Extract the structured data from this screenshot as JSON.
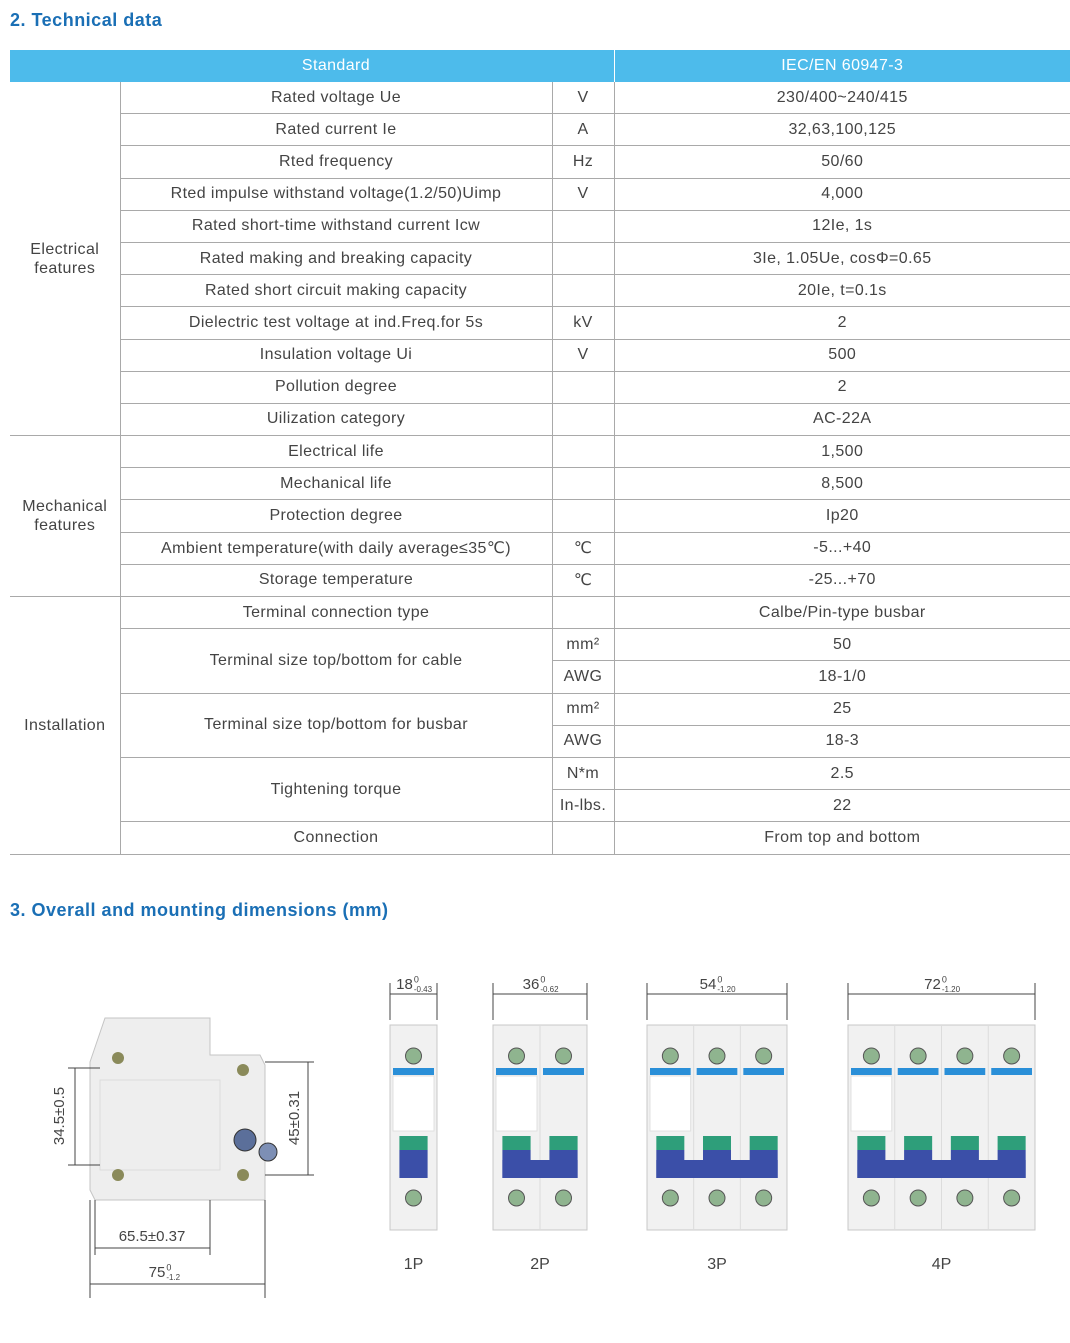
{
  "technical_title": "2. Technical data",
  "dimensions_title": "3. Overall and mounting dimensions (mm)",
  "table": {
    "header": [
      "Standard",
      "IEC/EN 60947-3"
    ],
    "groups": [
      {
        "label": "Electrical features",
        "rows": [
          {
            "param": "Rated voltage Ue",
            "units": [
              "V"
            ],
            "values": [
              "230/400~240/415"
            ]
          },
          {
            "param": "Rated current Ie",
            "units": [
              "A"
            ],
            "values": [
              "32,63,100,125"
            ]
          },
          {
            "param": "Rted frequency",
            "units": [
              "Hz"
            ],
            "values": [
              "50/60"
            ]
          },
          {
            "param": "Rted impulse withstand voltage(1.2/50)Uimp",
            "units": [
              "V"
            ],
            "values": [
              "4,000"
            ]
          },
          {
            "param": "Rated short-time withstand current Icw",
            "values": [
              "12Ie, 1s"
            ]
          },
          {
            "param": "Rated making and breaking capacity",
            "values": [
              "3Ie, 1.05Ue, cosΦ=0.65"
            ]
          },
          {
            "param": "Rated short circuit making capacity",
            "values": [
              "20Ie, t=0.1s"
            ]
          },
          {
            "param": "Dielectric test voltage at ind.Freq.for 5s",
            "units": [
              "kV"
            ],
            "values": [
              "2"
            ]
          },
          {
            "param": "Insulation voltage Ui",
            "units": [
              "V"
            ],
            "values": [
              "500"
            ]
          },
          {
            "param": "Pollution degree",
            "values": [
              "2"
            ]
          },
          {
            "param": "Uilization category",
            "values": [
              "AC-22A"
            ]
          }
        ]
      },
      {
        "label": "Mechanical features",
        "rows": [
          {
            "param": "Electrical life",
            "values": [
              "1,500"
            ]
          },
          {
            "param": "Mechanical life",
            "values": [
              "8,500"
            ]
          },
          {
            "param": "Protection degree",
            "values": [
              "Ip20"
            ]
          },
          {
            "param": "Ambient temperature(with daily average≤35℃)",
            "units": [
              "℃"
            ],
            "values": [
              "-5...+40"
            ]
          },
          {
            "param": "Storage temperature",
            "units": [
              "℃"
            ],
            "values": [
              "-25...+70"
            ]
          }
        ]
      },
      {
        "label": "Installation",
        "rows": [
          {
            "param": "Terminal connection type",
            "values": [
              "Calbe/Pin-type busbar"
            ]
          },
          {
            "param": "Terminal size top/bottom for cable",
            "units": [
              "mm²",
              "AWG"
            ],
            "values": [
              "50",
              "18-1/0"
            ]
          },
          {
            "param": "Terminal size top/bottom for busbar",
            "units": [
              "mm²",
              "AWG"
            ],
            "values": [
              "25",
              "18-3"
            ]
          },
          {
            "param": "Tightening torque",
            "units": [
              "N*m",
              "In-lbs."
            ],
            "values": [
              "2.5",
              "22"
            ]
          },
          {
            "param": "Connection",
            "values": [
              "From top and bottom"
            ]
          }
        ]
      }
    ]
  },
  "dimensions": {
    "side_view": [
      {
        "main": "34.5±0.5"
      },
      {
        "main": "45±0.31"
      },
      {
        "main": "65.5±0.37"
      },
      {
        "main": "75",
        "upper": "0",
        "lower": "-1.2"
      }
    ],
    "poles": [
      {
        "label": "1P",
        "width": {
          "main": "18",
          "upper": "0",
          "lower": "-0.43"
        }
      },
      {
        "label": "2P",
        "width": {
          "main": "36",
          "upper": "0",
          "lower": "-0.62"
        }
      },
      {
        "label": "3P",
        "width": {
          "main": "54",
          "upper": "0",
          "lower": "-1.20"
        }
      },
      {
        "label": "4P",
        "width": {
          "main": "72",
          "upper": "0",
          "lower": "-1.20"
        }
      }
    ]
  }
}
